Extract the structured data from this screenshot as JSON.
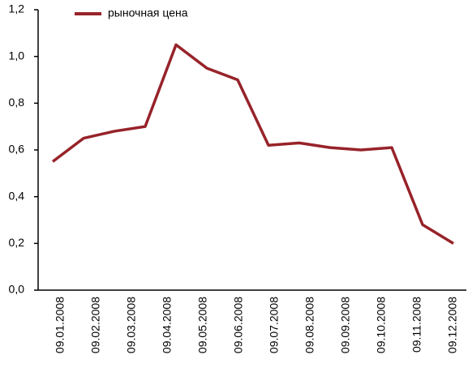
{
  "chart_data": {
    "type": "line",
    "series": [
      {
        "name": "рыночная  цена",
        "color": "#97232a",
        "values": [
          0.55,
          0.65,
          0.68,
          0.7,
          1.05,
          0.95,
          0.9,
          0.62,
          0.63,
          0.61,
          0.6,
          0.61,
          0.28,
          0.2
        ]
      }
    ],
    "xtick_labels": [
      "09.01.2008",
      "09.02.2008",
      "09.03.2008",
      "09.04.2008",
      "09.05.2008",
      "09.06.2008",
      "09.07.2008",
      "09.08.2008",
      "09.09.2008",
      "09.10.2008",
      "09.11.2008",
      "09.12.2008"
    ],
    "ylim": [
      0,
      1.2
    ],
    "yticks": [
      {
        "value": 0,
        "label": "0,0"
      },
      {
        "value": 0.2,
        "label": "0,2"
      },
      {
        "value": 0.4,
        "label": "0,4"
      },
      {
        "value": 0.6,
        "label": "0,6"
      },
      {
        "value": 0.8,
        "label": "0,8"
      },
      {
        "value": 1.0,
        "label": "1,0"
      },
      {
        "value": 1.2,
        "label": "1,2"
      }
    ],
    "legend": "top"
  }
}
